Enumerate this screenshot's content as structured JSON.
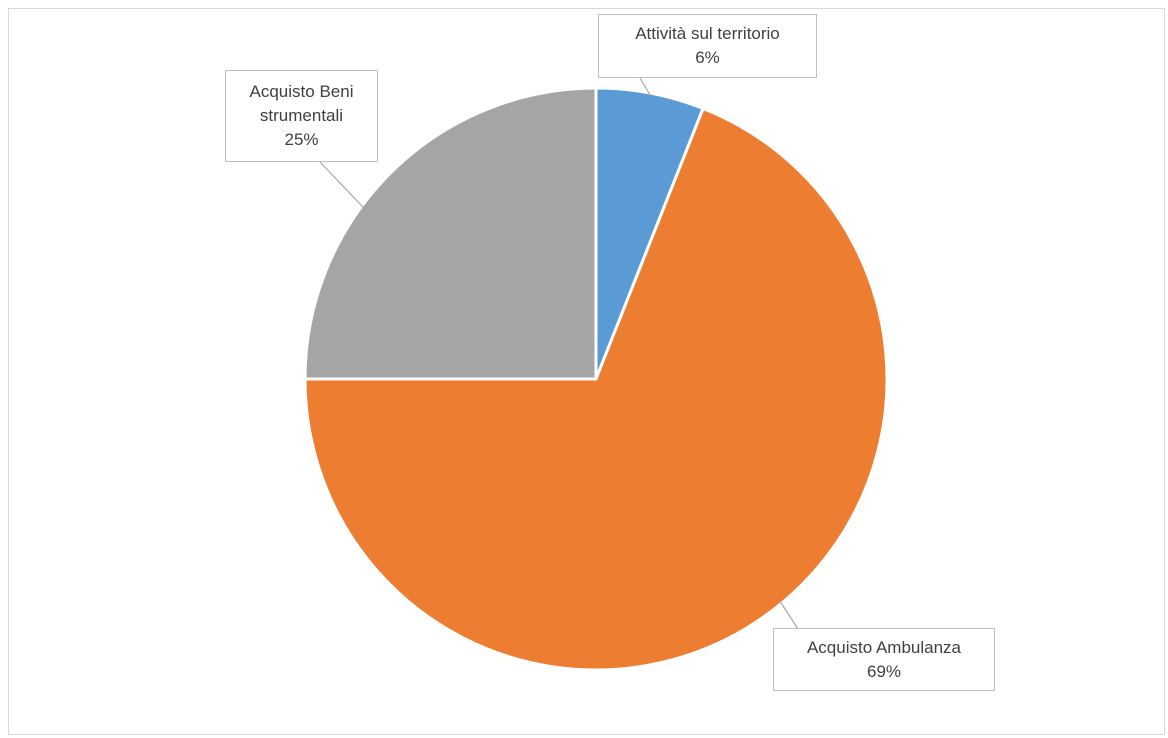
{
  "chart_data": {
    "type": "pie",
    "title": "",
    "start_angle_deg": 0,
    "direction": "clockwise",
    "slices": [
      {
        "label": "Attività sul territorio",
        "label_lines": [
          "Attività sul territorio"
        ],
        "value": 6,
        "percent_label": "6%",
        "color": "#5b9bd5"
      },
      {
        "label": "Acquisto Ambulanza",
        "label_lines": [
          "Acquisto Ambulanza"
        ],
        "value": 69,
        "percent_label": "69%",
        "color": "#ed7d31"
      },
      {
        "label": "Acquisto Beni strumentali",
        "label_lines": [
          "Acquisto Beni",
          "strumentali"
        ],
        "value": 25,
        "percent_label": "25%",
        "color": "#a5a5a5"
      }
    ],
    "legend": "none",
    "data_labels": "callout"
  }
}
